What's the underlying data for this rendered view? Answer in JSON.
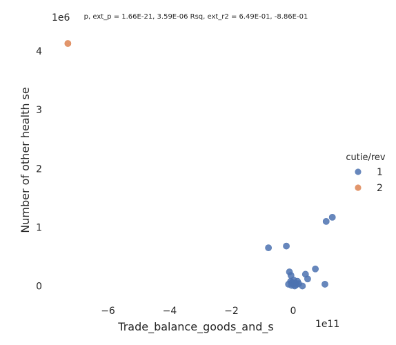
{
  "chart_data": {
    "type": "scatter",
    "title": "p, ext_p = 1.66E-21, 3.59E-06 Rsq, ext_r2 = 6.49E-01, -8.86E-01",
    "xlabel": "Trade_balance_goods_and_s",
    "ylabel": "Number of other health se",
    "x_offset_label": "1e11",
    "y_offset_label": "1e6",
    "xlim": [
      -7.8,
      1.5
    ],
    "ylim": [
      -0.3,
      4.4
    ],
    "x_ticks": [
      {
        "value": -6,
        "label": "−6"
      },
      {
        "value": -4,
        "label": "−4"
      },
      {
        "value": -2,
        "label": "−2"
      },
      {
        "value": 0,
        "label": "0"
      }
    ],
    "y_ticks": [
      {
        "value": 0,
        "label": "0"
      },
      {
        "value": 1,
        "label": "1"
      },
      {
        "value": 2,
        "label": "2"
      },
      {
        "value": 3,
        "label": "3"
      },
      {
        "value": 4,
        "label": "4"
      }
    ],
    "grid": false,
    "legend": {
      "title": "cutie/rev",
      "placement": "right",
      "entries": [
        {
          "label": "1",
          "color": "#4c72b0"
        },
        {
          "label": "2",
          "color": "#dd8452"
        }
      ]
    },
    "series": [
      {
        "name": "1",
        "color": "#4c72b0",
        "points": [
          {
            "x": -0.8,
            "y": 0.65
          },
          {
            "x": -0.22,
            "y": 0.68
          },
          {
            "x": 1.07,
            "y": 1.1
          },
          {
            "x": 1.27,
            "y": 1.17
          },
          {
            "x": -0.12,
            "y": 0.24
          },
          {
            "x": -0.07,
            "y": 0.18
          },
          {
            "x": 0.72,
            "y": 0.29
          },
          {
            "x": 0.4,
            "y": 0.2
          },
          {
            "x": 0.47,
            "y": 0.12
          },
          {
            "x": -0.15,
            "y": 0.03
          },
          {
            "x": -0.08,
            "y": 0.08
          },
          {
            "x": -0.03,
            "y": 0.06
          },
          {
            "x": 0.0,
            "y": 0.03
          },
          {
            "x": 0.05,
            "y": 0.0
          },
          {
            "x": 0.1,
            "y": 0.02
          },
          {
            "x": 0.14,
            "y": 0.08
          },
          {
            "x": 0.18,
            "y": 0.04
          },
          {
            "x": -0.05,
            "y": 0.01
          },
          {
            "x": 0.3,
            "y": 0.0
          },
          {
            "x": 1.03,
            "y": 0.03
          },
          {
            "x": 0.08,
            "y": 0.05
          },
          {
            "x": 0.02,
            "y": 0.1
          }
        ]
      },
      {
        "name": "2",
        "color": "#dd8452",
        "points": [
          {
            "x": -7.3,
            "y": 4.13
          }
        ]
      }
    ]
  }
}
